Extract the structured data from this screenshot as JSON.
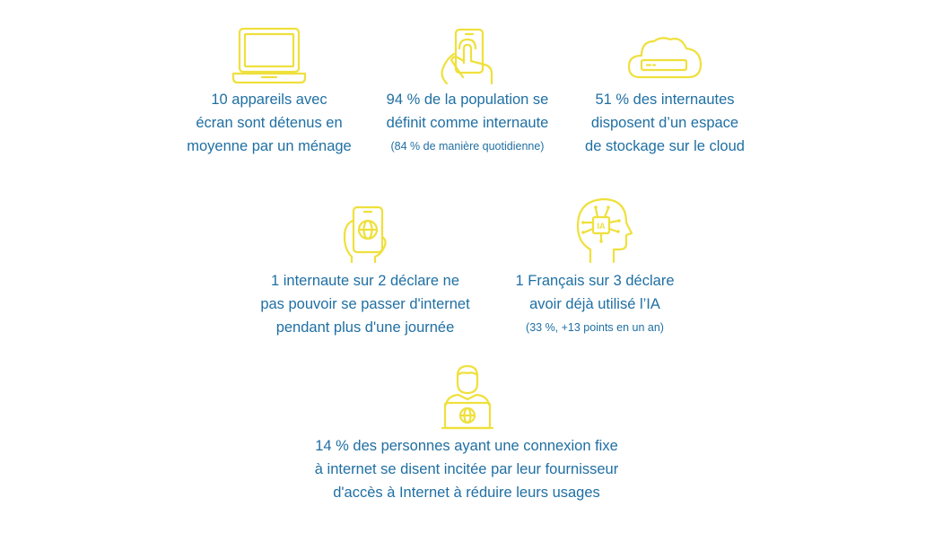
{
  "accent_color": "#efe03c",
  "text_color": "#1f6fa3",
  "stats": [
    {
      "icon": "laptop-icon",
      "lines": [
        "10 appareils avec",
        "écran sont détenus en",
        "moyenne par un ménage"
      ],
      "note": ""
    },
    {
      "icon": "touch-tablet-icon",
      "lines": [
        "94 % de la population se",
        "définit comme internaute"
      ],
      "note": "(84 % de manière quotidienne)"
    },
    {
      "icon": "cloud-storage-icon",
      "lines": [
        "51 % des internautes",
        "disposent d’un espace",
        "de stockage sur le cloud"
      ],
      "note": ""
    },
    {
      "icon": "smartphone-globe-icon",
      "lines": [
        "1 internaute sur 2 déclare ne",
        "pas pouvoir se passer d'internet",
        "pendant plus d'une journée"
      ],
      "note": ""
    },
    {
      "icon": "ai-head-icon",
      "icon_label": "IA",
      "lines": [
        "1 Français sur 3 déclare",
        "avoir déjà utilisé l’IA"
      ],
      "note": "(33 %, +13 points en un an)"
    },
    {
      "icon": "person-laptop-icon",
      "lines": [
        "14 % des personnes ayant une connexion fixe",
        "à internet se disent incitée par leur fournisseur",
        "d'accès à Internet à réduire leurs usages"
      ],
      "note": ""
    }
  ]
}
